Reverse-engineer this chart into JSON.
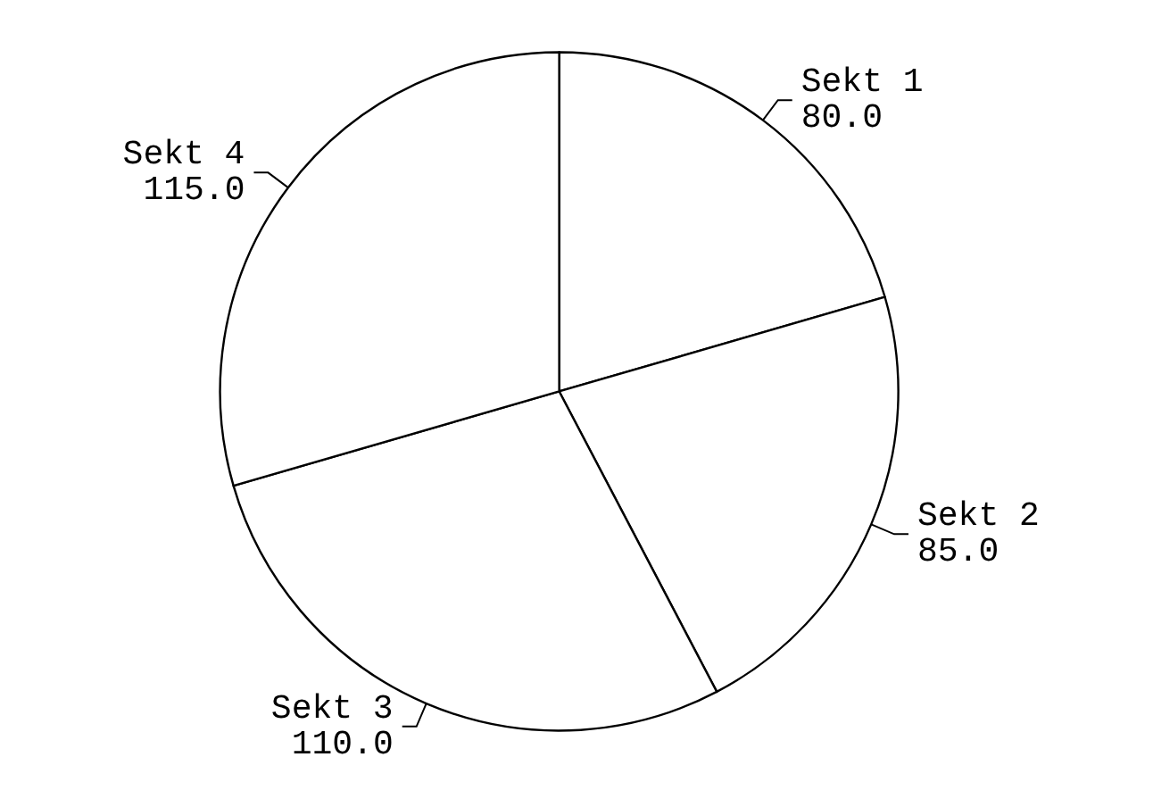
{
  "chart_data": {
    "type": "pie",
    "categories": [
      "Sekt 1",
      "Sekt 2",
      "Sekt 3",
      "Sekt 4"
    ],
    "values": [
      80,
      85,
      110,
      115
    ],
    "value_labels": [
      "80.0",
      "85.0",
      "110.0",
      "115.0"
    ],
    "colors": [
      "#ffffff",
      "#ffffff",
      "#ffffff",
      "#ffffff"
    ],
    "legend": false
  }
}
